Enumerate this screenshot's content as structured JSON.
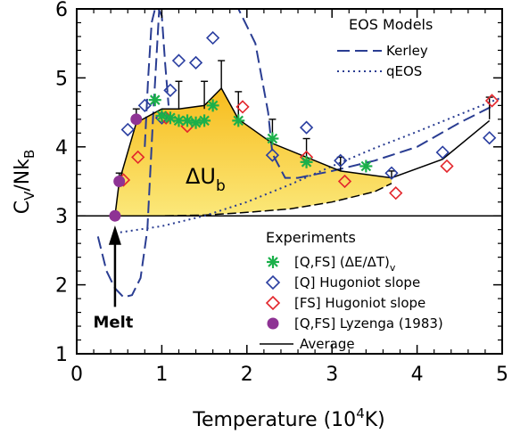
{
  "chart_data": {
    "type": "scatter",
    "xlabel": "Temperature (10",
    "xlabel_sup": "4",
    "xlabel_end": "K)",
    "ylabel_main": "C",
    "ylabel_sub_v": "V",
    "ylabel_mid": "/Nk",
    "ylabel_sub_b": "B",
    "xlim": [
      0,
      5
    ],
    "ylim": [
      1,
      6
    ],
    "xticks": [
      "0",
      "1",
      "2",
      "3",
      "4",
      "5"
    ],
    "yticks": [
      "1",
      "2",
      "3",
      "4",
      "5",
      "6"
    ],
    "grid": false,
    "reference_line_y": 3,
    "annotations": {
      "delta_u": "ΔU",
      "delta_u_sub": "b",
      "melt": "Melt",
      "melt_x": 0.45
    },
    "legend_models": {
      "title": "EOS Models",
      "entries": [
        "Kerley",
        "qEOS"
      ],
      "placement": "top-right"
    },
    "legend_experiments": {
      "title": "Experiments",
      "entries": [
        {
          "label": "[Q,FS] (ΔE/ΔT)",
          "sub": "v"
        },
        {
          "label": "[Q] Hugoniot slope",
          "sub": ""
        },
        {
          "label": "[FS] Hugoniot slope",
          "sub": ""
        },
        {
          "label": "[Q,FS] Lyzenga (1983)",
          "sub": ""
        },
        {
          "label": "Average",
          "sub": ""
        }
      ],
      "placement": "bottom-right"
    },
    "colors": {
      "green": "#1bb04a",
      "blue_diamond": "#2a3ea0",
      "red_diamond": "#e3262c",
      "purple": "#8e3394",
      "kerley": "#2a3d92",
      "qeos": "#2a3d92",
      "fill_top": "#f7bc1c",
      "fill_bottom": "#fbe87a"
    },
    "series": {
      "green_stars": {
        "x": [
          0.92,
          1.0,
          1.1,
          1.2,
          1.3,
          1.4,
          1.5,
          1.6,
          1.9,
          2.3,
          2.7,
          3.4
        ],
        "y": [
          4.68,
          4.45,
          4.42,
          4.38,
          4.38,
          4.35,
          4.38,
          4.6,
          4.38,
          4.12,
          3.78,
          3.72
        ]
      },
      "blue_diamonds": {
        "x": [
          0.6,
          0.8,
          1.0,
          1.1,
          1.2,
          1.4,
          1.6,
          2.3,
          2.7,
          3.1,
          3.7,
          4.3,
          4.85
        ],
        "y": [
          4.25,
          4.6,
          4.42,
          4.82,
          5.25,
          5.22,
          5.58,
          3.88,
          4.28,
          3.8,
          3.62,
          3.92,
          4.13
        ]
      },
      "red_diamonds": {
        "x": [
          0.55,
          0.72,
          1.05,
          1.3,
          1.95,
          2.7,
          3.15,
          3.75,
          4.35,
          4.88
        ],
        "y": [
          3.52,
          3.85,
          4.42,
          4.3,
          4.58,
          3.85,
          3.5,
          3.33,
          3.72,
          4.67
        ]
      },
      "purple_circles": {
        "x": [
          0.45,
          0.5,
          0.7
        ],
        "y": [
          3.0,
          3.5,
          4.4
        ]
      },
      "error_bars": [
        {
          "x": 0.5,
          "y": 3.5,
          "hi": 3.62
        },
        {
          "x": 0.7,
          "y": 4.4,
          "hi": 4.55
        },
        {
          "x": 1.2,
          "y": 4.55,
          "hi": 4.95
        },
        {
          "x": 1.5,
          "y": 4.55,
          "hi": 4.95
        },
        {
          "x": 1.7,
          "y": 4.85,
          "hi": 5.25
        },
        {
          "x": 1.9,
          "y": 4.38,
          "hi": 4.8
        },
        {
          "x": 2.3,
          "y": 4.05,
          "hi": 4.4
        },
        {
          "x": 2.7,
          "y": 3.85,
          "hi": 4.12
        },
        {
          "x": 3.1,
          "y": 3.65,
          "hi": 3.85
        },
        {
          "x": 3.7,
          "y": 3.55,
          "hi": 3.65
        },
        {
          "x": 4.85,
          "y": 4.4,
          "hi": 4.72
        }
      ],
      "average": {
        "x": [
          0.45,
          0.5,
          0.7,
          1.0,
          1.2,
          1.5,
          1.7,
          1.9,
          2.3,
          2.7,
          3.1,
          3.7,
          4.3,
          4.85
        ],
        "y": [
          3.0,
          3.5,
          4.35,
          4.55,
          4.55,
          4.6,
          4.85,
          4.4,
          4.05,
          3.85,
          3.65,
          3.55,
          3.82,
          4.38
        ]
      },
      "fill_lower": {
        "x": [
          0.45,
          1.0,
          1.5,
          2.0,
          2.5,
          3.0,
          3.5,
          3.7
        ],
        "y": [
          3.0,
          3.0,
          3.01,
          3.05,
          3.1,
          3.2,
          3.35,
          3.47
        ]
      },
      "kerley": {
        "x": [
          0.25,
          0.35,
          0.45,
          0.55,
          0.65,
          0.75,
          0.83,
          0.9,
          0.97,
          1.0
        ],
        "y": [
          2.7,
          2.2,
          1.95,
          1.82,
          1.85,
          2.1,
          2.8,
          4.5,
          6.0,
          6.0
        ],
        "x2": [
          1.6,
          1.9,
          2.1,
          2.25,
          2.3,
          2.45,
          2.6,
          3.0,
          3.5,
          4.0,
          4.5,
          4.9
        ],
        "y2": [
          6.0,
          6.0,
          5.5,
          4.5,
          3.9,
          3.55,
          3.55,
          3.65,
          3.8,
          4.0,
          4.35,
          4.6
        ]
      },
      "kerley_top": {
        "x": [
          0.8,
          0.84,
          0.88,
          0.92,
          0.96,
          1.0,
          1.04,
          1.08
        ],
        "y": [
          4.0,
          5.0,
          5.8,
          6.0,
          6.0,
          5.9,
          5.2,
          4.6
        ]
      },
      "qeos": {
        "x": [
          0.45,
          1.0,
          1.5,
          2.0,
          2.5,
          3.0,
          3.5,
          4.0,
          4.5,
          5.0
        ],
        "y": [
          2.75,
          2.85,
          3.0,
          3.2,
          3.45,
          3.72,
          3.98,
          4.22,
          4.47,
          4.72
        ]
      }
    }
  }
}
